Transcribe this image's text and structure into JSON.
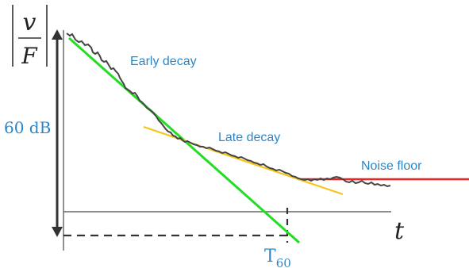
{
  "yaxis": {
    "numerator": "v",
    "denominator": "F",
    "range_label": "60 dB"
  },
  "xaxis": {
    "label": "t",
    "t60_label": "T",
    "t60_subscript": "60"
  },
  "annotations": {
    "early_decay": "Early decay",
    "late_decay": "Late decay",
    "noise_floor": "Noise floor"
  },
  "colors": {
    "label_blue": "#2a87c8",
    "early_decay_line": "#22dd22",
    "late_decay_line": "#f5c518",
    "noise_floor_line": "#ee2222",
    "signal": "#444444",
    "axis": "#555555"
  }
}
